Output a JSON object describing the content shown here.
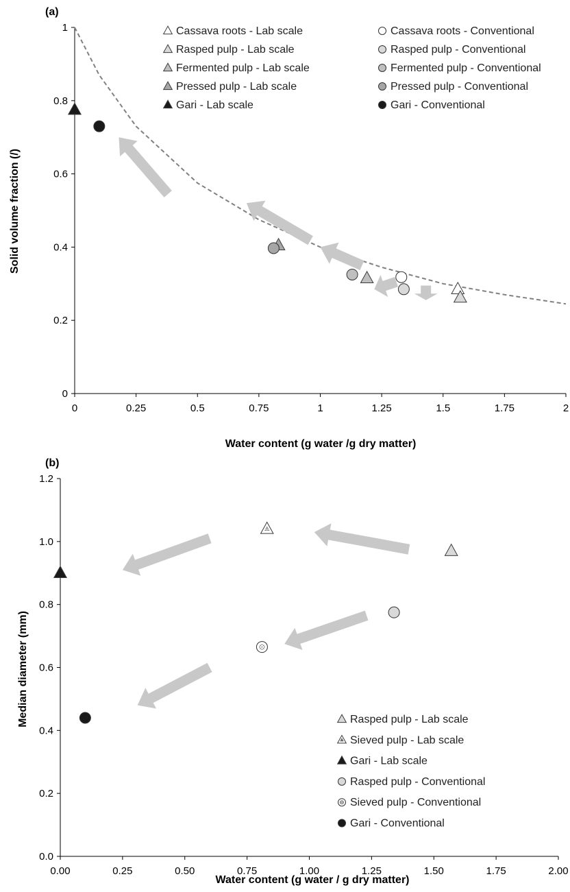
{
  "colors": {
    "axis": "#000000",
    "curve": "#808080",
    "arrow": "#c8c8c8",
    "white_fill": "#ffffff",
    "light_fill": "#d9d9d9",
    "medium_fill": "#bfbfbf",
    "dark_gray_fill": "#a6a6a6",
    "black_fill": "#1a1a1a"
  },
  "chart_data": [
    {
      "type": "scatter",
      "panel_label": "(a)",
      "xlabel": "Water content (g water /g dry matter)",
      "ylabel": "Solid volume fraction (/)",
      "xlim": [
        0,
        2
      ],
      "ylim": [
        0,
        1
      ],
      "x_ticks": [
        "0",
        "0.25",
        "0.5",
        "0.75",
        "1",
        "1.25",
        "1.5",
        "1.75",
        "2"
      ],
      "y_ticks": [
        "0",
        "0.2",
        "0.4",
        "0.6",
        "0.8",
        "1"
      ],
      "grid": false,
      "legend_position": "top-right",
      "reference_curve": {
        "style": "dashed",
        "x": [
          0,
          0.1,
          0.25,
          0.5,
          0.75,
          1,
          1.25,
          1.5,
          1.75,
          2
        ],
        "y": [
          1,
          0.87,
          0.73,
          0.575,
          0.475,
          0.4,
          0.345,
          0.3,
          0.27,
          0.245
        ]
      },
      "series": [
        {
          "name": "Cassava roots - Lab scale",
          "marker": "triangle",
          "fill": "white_fill",
          "x": [
            1.56
          ],
          "y": [
            0.285
          ]
        },
        {
          "name": "Rasped pulp - Lab scale",
          "marker": "triangle",
          "fill": "light_fill",
          "x": [
            1.57
          ],
          "y": [
            0.262
          ]
        },
        {
          "name": "Fermented pulp - Lab scale",
          "marker": "triangle",
          "fill": "medium_fill",
          "x": [
            1.19
          ],
          "y": [
            0.315
          ]
        },
        {
          "name": "Pressed pulp - Lab scale",
          "marker": "triangle",
          "fill": "dark_gray_fill",
          "x": [
            0.83
          ],
          "y": [
            0.405
          ]
        },
        {
          "name": "Gari - Lab scale",
          "marker": "triangle",
          "fill": "black_fill",
          "x": [
            0.0
          ],
          "y": [
            0.775
          ]
        },
        {
          "name": "Cassava roots - Conventional",
          "marker": "circle",
          "fill": "white_fill",
          "x": [
            1.33
          ],
          "y": [
            0.318
          ]
        },
        {
          "name": "Rasped pulp - Conventional",
          "marker": "circle",
          "fill": "light_fill",
          "x": [
            1.34
          ],
          "y": [
            0.285
          ]
        },
        {
          "name": "Fermented pulp - Conventional",
          "marker": "circle",
          "fill": "medium_fill",
          "x": [
            1.13
          ],
          "y": [
            0.325
          ]
        },
        {
          "name": "Pressed pulp - Conventional",
          "marker": "circle",
          "fill": "dark_gray_fill",
          "x": [
            0.81
          ],
          "y": [
            0.397
          ]
        },
        {
          "name": "Gari - Conventional",
          "marker": "circle",
          "fill": "black_fill",
          "x": [
            0.1
          ],
          "y": [
            0.73
          ]
        }
      ],
      "arrows": [
        {
          "from": [
            1.43,
            0.295
          ],
          "to": [
            1.43,
            0.255
          ]
        },
        {
          "from": [
            1.31,
            0.305
          ],
          "to": [
            1.22,
            0.285
          ]
        },
        {
          "from": [
            1.17,
            0.35
          ],
          "to": [
            1.0,
            0.4
          ]
        },
        {
          "from": [
            0.96,
            0.418
          ],
          "to": [
            0.7,
            0.52
          ]
        },
        {
          "from": [
            0.38,
            0.545
          ],
          "to": [
            0.18,
            0.7
          ]
        }
      ]
    },
    {
      "type": "scatter",
      "panel_label": "(b)",
      "xlabel": "Water content (g water / g dry matter)",
      "ylabel": "Median diameter (mm)",
      "xlim": [
        0,
        2
      ],
      "ylim": [
        0,
        1.2
      ],
      "x_ticks": [
        "0.00",
        "0.25",
        "0.50",
        "0.75",
        "1.00",
        "1.25",
        "1.50",
        "1.75",
        "2.00"
      ],
      "y_ticks": [
        "0.0",
        "0.2",
        "0.4",
        "0.6",
        "0.8",
        "1.0",
        "1.2"
      ],
      "grid": false,
      "legend_position": "bottom-right",
      "series": [
        {
          "name": "Rasped pulp - Lab scale",
          "marker": "triangle",
          "fill": "light_fill",
          "x": [
            1.57
          ],
          "y": [
            0.97
          ]
        },
        {
          "name": "Sieved pulp - Lab scale",
          "marker": "triangle-dotted",
          "fill": "white_fill",
          "x": [
            0.83
          ],
          "y": [
            1.04
          ]
        },
        {
          "name": "Gari - Lab scale",
          "marker": "triangle",
          "fill": "black_fill",
          "x": [
            0.0
          ],
          "y": [
            0.9
          ]
        },
        {
          "name": "Rasped pulp - Conventional",
          "marker": "circle",
          "fill": "light_fill",
          "x": [
            1.34
          ],
          "y": [
            0.775
          ]
        },
        {
          "name": "Sieved pulp - Conventional",
          "marker": "circle-dotted",
          "fill": "white_fill",
          "x": [
            0.81
          ],
          "y": [
            0.665
          ]
        },
        {
          "name": "Gari - Conventional",
          "marker": "circle",
          "fill": "black_fill",
          "x": [
            0.1
          ],
          "y": [
            0.44
          ]
        }
      ],
      "arrows": [
        {
          "from": [
            1.4,
            0.975
          ],
          "to": [
            1.02,
            1.03
          ]
        },
        {
          "from": [
            0.6,
            1.01
          ],
          "to": [
            0.25,
            0.91
          ]
        },
        {
          "from": [
            1.23,
            0.765
          ],
          "to": [
            0.9,
            0.675
          ]
        },
        {
          "from": [
            0.6,
            0.6
          ],
          "to": [
            0.31,
            0.48
          ]
        }
      ]
    }
  ]
}
